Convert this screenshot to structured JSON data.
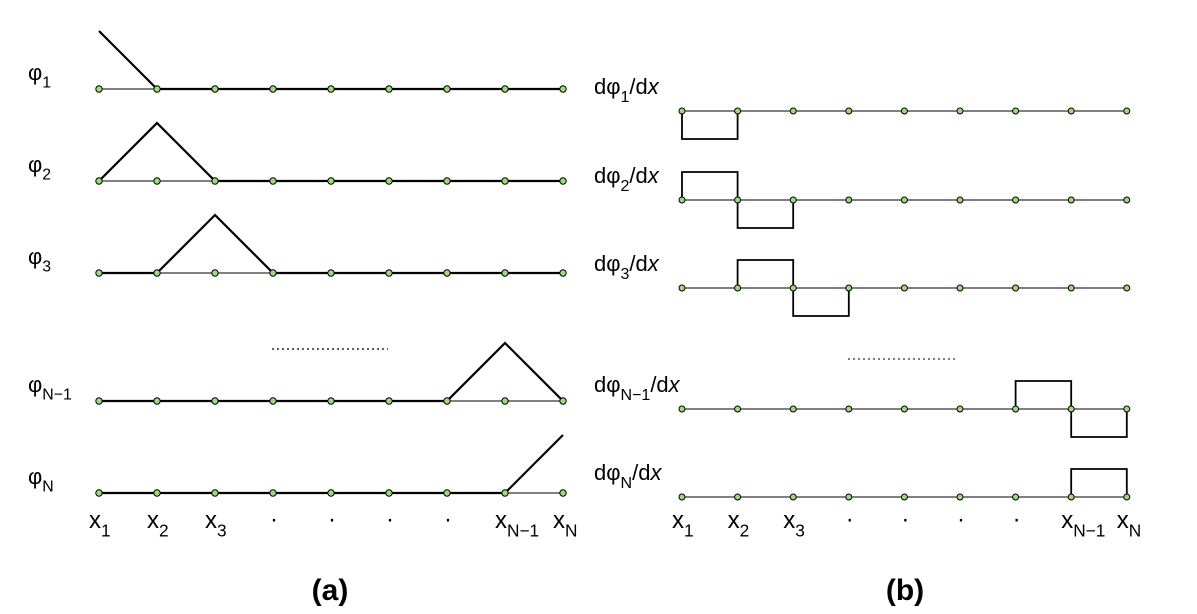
{
  "panel_a": {
    "caption": "(a)",
    "rows": [
      {
        "base": "φ",
        "sub": "1",
        "shape": "hat",
        "peak": 0,
        "scale": "full"
      },
      {
        "base": "φ",
        "sub": "2",
        "shape": "hat",
        "peak": 1,
        "scale": "full"
      },
      {
        "base": "φ",
        "sub": "3",
        "shape": "hat",
        "peak": 2,
        "scale": "full"
      },
      {
        "base": "φ",
        "sub": "N−1",
        "shape": "hat",
        "peak": 7,
        "scale": "full"
      },
      {
        "base": "φ",
        "sub": "N",
        "shape": "hat",
        "peak": 8,
        "scale": "full"
      }
    ],
    "x_labels": [
      {
        "base": "x",
        "sub": "1"
      },
      {
        "base": "x",
        "sub": "2"
      },
      {
        "base": "x",
        "sub": "3"
      },
      {
        "base": "·",
        "sub": ""
      },
      {
        "base": "·",
        "sub": ""
      },
      {
        "base": "·",
        "sub": ""
      },
      {
        "base": "·",
        "sub": ""
      },
      {
        "base": "x",
        "sub": "N−1"
      },
      {
        "base": "x",
        "sub": "N"
      }
    ]
  },
  "panel_b": {
    "caption": "(b)",
    "rows": [
      {
        "prefix": "dφ",
        "sub": "1",
        "suffix": "/d",
        "var": "x",
        "shape": "step",
        "peak": 0
      },
      {
        "prefix": "dφ",
        "sub": "2",
        "suffix": "/d",
        "var": "x",
        "shape": "step",
        "peak": 1
      },
      {
        "prefix": "dφ",
        "sub": "3",
        "suffix": "/d",
        "var": "x",
        "shape": "step",
        "peak": 2
      },
      {
        "prefix": "dφ",
        "sub": "N−1",
        "suffix": "/d",
        "var": "x",
        "shape": "step",
        "peak": 7
      },
      {
        "prefix": "dφ",
        "sub": "N",
        "suffix": "/d",
        "var": "x",
        "shape": "step",
        "peak": 8
      }
    ],
    "x_labels": [
      {
        "base": "x",
        "sub": "1"
      },
      {
        "base": "x",
        "sub": "2"
      },
      {
        "base": "x",
        "sub": "3"
      },
      {
        "base": "·",
        "sub": ""
      },
      {
        "base": "·",
        "sub": ""
      },
      {
        "base": "·",
        "sub": ""
      },
      {
        "base": "·",
        "sub": ""
      },
      {
        "base": "x",
        "sub": "N−1"
      },
      {
        "base": "x",
        "sub": "N"
      }
    ]
  },
  "node_count": 9,
  "colors": {
    "node_fill": "#9ddb7a",
    "line": "#000000",
    "background": "#ffffff"
  }
}
